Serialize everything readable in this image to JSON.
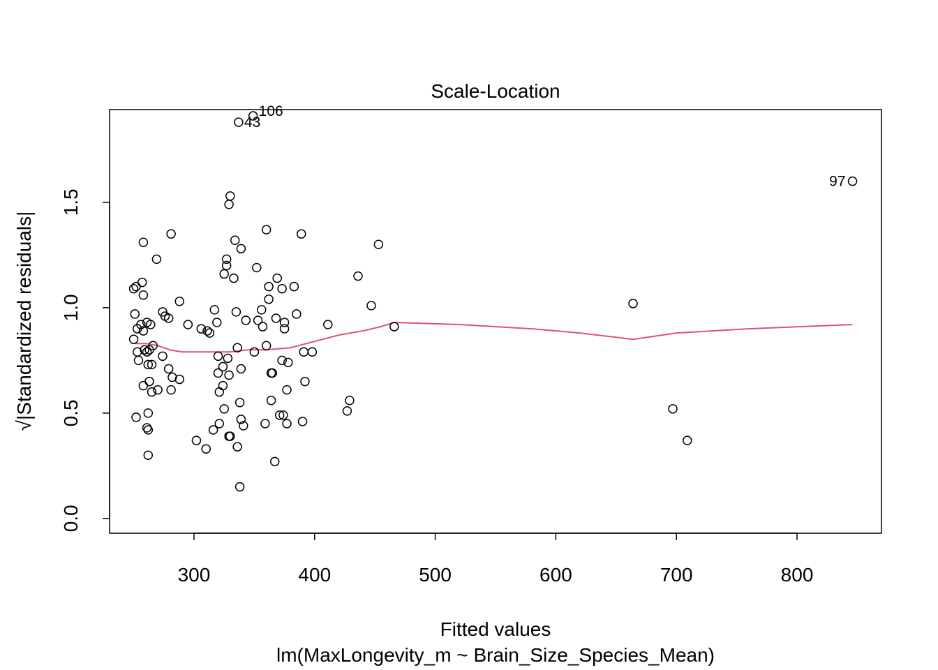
{
  "chart_data": {
    "type": "scatter",
    "title": "Scale-Location",
    "xlabel": "Fitted values",
    "subtitle": "lm(MaxLongevity_m ~ Brain_Size_Species_Mean)",
    "ylabel_sqrt_prefix": "√",
    "ylabel": "|Standardized residuals|",
    "xlim": [
      230,
      870
    ],
    "ylim": [
      -0.07,
      1.94
    ],
    "xticks": [
      300,
      400,
      500,
      600,
      700,
      800
    ],
    "yticks": [
      0.0,
      0.5,
      1.0,
      1.5
    ],
    "xtick_labels": [
      "300",
      "400",
      "500",
      "600",
      "700",
      "800"
    ],
    "ytick_labels": [
      "0.0",
      "0.5",
      "1.0",
      "1.5"
    ],
    "grid": false,
    "point_color": "#000000",
    "smooth_color": "#DF536B",
    "points": [
      {
        "x": 349,
        "y": 1.91,
        "label": "106"
      },
      {
        "x": 337,
        "y": 1.88,
        "label": "43"
      },
      {
        "x": 846,
        "y": 1.6,
        "label": "97"
      },
      {
        "x": 330,
        "y": 1.53
      },
      {
        "x": 329,
        "y": 1.49
      },
      {
        "x": 360,
        "y": 1.37
      },
      {
        "x": 281,
        "y": 1.35
      },
      {
        "x": 389,
        "y": 1.35
      },
      {
        "x": 334,
        "y": 1.32
      },
      {
        "x": 258,
        "y": 1.31
      },
      {
        "x": 453,
        "y": 1.3
      },
      {
        "x": 339,
        "y": 1.28
      },
      {
        "x": 269,
        "y": 1.23
      },
      {
        "x": 327,
        "y": 1.23
      },
      {
        "x": 327,
        "y": 1.2
      },
      {
        "x": 352,
        "y": 1.19
      },
      {
        "x": 325,
        "y": 1.16
      },
      {
        "x": 436,
        "y": 1.15
      },
      {
        "x": 369,
        "y": 1.14
      },
      {
        "x": 333,
        "y": 1.14
      },
      {
        "x": 257,
        "y": 1.12
      },
      {
        "x": 252,
        "y": 1.1
      },
      {
        "x": 250,
        "y": 1.09
      },
      {
        "x": 362,
        "y": 1.1
      },
      {
        "x": 373,
        "y": 1.09
      },
      {
        "x": 383,
        "y": 1.1
      },
      {
        "x": 258,
        "y": 1.06
      },
      {
        "x": 362,
        "y": 1.04
      },
      {
        "x": 288,
        "y": 1.03
      },
      {
        "x": 447,
        "y": 1.01
      },
      {
        "x": 664,
        "y": 1.02
      },
      {
        "x": 317,
        "y": 0.99
      },
      {
        "x": 335,
        "y": 0.98
      },
      {
        "x": 356,
        "y": 0.99
      },
      {
        "x": 274,
        "y": 0.98
      },
      {
        "x": 276,
        "y": 0.96
      },
      {
        "x": 251,
        "y": 0.97
      },
      {
        "x": 279,
        "y": 0.95
      },
      {
        "x": 385,
        "y": 0.97
      },
      {
        "x": 343,
        "y": 0.94
      },
      {
        "x": 353,
        "y": 0.94
      },
      {
        "x": 368,
        "y": 0.95
      },
      {
        "x": 261,
        "y": 0.93
      },
      {
        "x": 256,
        "y": 0.92
      },
      {
        "x": 264,
        "y": 0.92
      },
      {
        "x": 295,
        "y": 0.92
      },
      {
        "x": 319,
        "y": 0.93
      },
      {
        "x": 357,
        "y": 0.91
      },
      {
        "x": 375,
        "y": 0.93
      },
      {
        "x": 411,
        "y": 0.92
      },
      {
        "x": 466,
        "y": 0.91
      },
      {
        "x": 253,
        "y": 0.9
      },
      {
        "x": 258,
        "y": 0.89
      },
      {
        "x": 306,
        "y": 0.9
      },
      {
        "x": 311,
        "y": 0.89
      },
      {
        "x": 313,
        "y": 0.88
      },
      {
        "x": 375,
        "y": 0.9
      },
      {
        "x": 250,
        "y": 0.85
      },
      {
        "x": 266,
        "y": 0.82
      },
      {
        "x": 336,
        "y": 0.81
      },
      {
        "x": 360,
        "y": 0.82
      },
      {
        "x": 253,
        "y": 0.79
      },
      {
        "x": 259,
        "y": 0.8
      },
      {
        "x": 261,
        "y": 0.79
      },
      {
        "x": 263,
        "y": 0.8
      },
      {
        "x": 350,
        "y": 0.79
      },
      {
        "x": 391,
        "y": 0.79
      },
      {
        "x": 398,
        "y": 0.79
      },
      {
        "x": 274,
        "y": 0.77
      },
      {
        "x": 320,
        "y": 0.77
      },
      {
        "x": 328,
        "y": 0.76
      },
      {
        "x": 373,
        "y": 0.75
      },
      {
        "x": 378,
        "y": 0.74
      },
      {
        "x": 254,
        "y": 0.75
      },
      {
        "x": 262,
        "y": 0.73
      },
      {
        "x": 265,
        "y": 0.73
      },
      {
        "x": 279,
        "y": 0.71
      },
      {
        "x": 324,
        "y": 0.72
      },
      {
        "x": 339,
        "y": 0.71
      },
      {
        "x": 320,
        "y": 0.69
      },
      {
        "x": 329,
        "y": 0.68
      },
      {
        "x": 365,
        "y": 0.69
      },
      {
        "x": 364,
        "y": 0.69
      },
      {
        "x": 282,
        "y": 0.67
      },
      {
        "x": 288,
        "y": 0.66
      },
      {
        "x": 263,
        "y": 0.65
      },
      {
        "x": 392,
        "y": 0.65
      },
      {
        "x": 258,
        "y": 0.63
      },
      {
        "x": 324,
        "y": 0.63
      },
      {
        "x": 270,
        "y": 0.61
      },
      {
        "x": 265,
        "y": 0.6
      },
      {
        "x": 281,
        "y": 0.61
      },
      {
        "x": 321,
        "y": 0.6
      },
      {
        "x": 377,
        "y": 0.61
      },
      {
        "x": 364,
        "y": 0.56
      },
      {
        "x": 338,
        "y": 0.55
      },
      {
        "x": 429,
        "y": 0.56
      },
      {
        "x": 325,
        "y": 0.52
      },
      {
        "x": 262,
        "y": 0.5
      },
      {
        "x": 427,
        "y": 0.51
      },
      {
        "x": 697,
        "y": 0.52
      },
      {
        "x": 371,
        "y": 0.49
      },
      {
        "x": 374,
        "y": 0.49
      },
      {
        "x": 252,
        "y": 0.48
      },
      {
        "x": 339,
        "y": 0.47
      },
      {
        "x": 341,
        "y": 0.44
      },
      {
        "x": 321,
        "y": 0.45
      },
      {
        "x": 359,
        "y": 0.45
      },
      {
        "x": 377,
        "y": 0.45
      },
      {
        "x": 390,
        "y": 0.46
      },
      {
        "x": 261,
        "y": 0.43
      },
      {
        "x": 262,
        "y": 0.42
      },
      {
        "x": 316,
        "y": 0.42
      },
      {
        "x": 329,
        "y": 0.39
      },
      {
        "x": 330,
        "y": 0.39
      },
      {
        "x": 302,
        "y": 0.37
      },
      {
        "x": 709,
        "y": 0.37
      },
      {
        "x": 310,
        "y": 0.33
      },
      {
        "x": 336,
        "y": 0.34
      },
      {
        "x": 262,
        "y": 0.3
      },
      {
        "x": 367,
        "y": 0.27
      },
      {
        "x": 338,
        "y": 0.15
      }
    ],
    "smooth_line": {
      "x": [
        251,
        260,
        270,
        280,
        290,
        300,
        315,
        330,
        345,
        360,
        380,
        400,
        420,
        440,
        455,
        466,
        520,
        580,
        620,
        664,
        700,
        760,
        846
      ],
      "y": [
        0.83,
        0.83,
        0.82,
        0.8,
        0.79,
        0.79,
        0.79,
        0.79,
        0.8,
        0.8,
        0.81,
        0.84,
        0.87,
        0.89,
        0.91,
        0.93,
        0.92,
        0.9,
        0.88,
        0.85,
        0.88,
        0.9,
        0.92
      ]
    }
  }
}
